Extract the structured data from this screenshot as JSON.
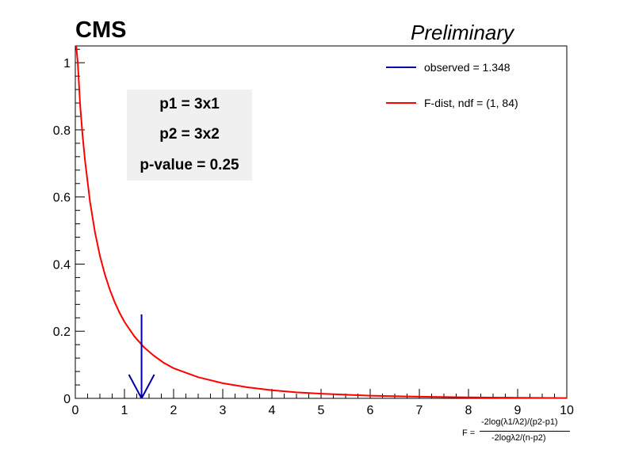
{
  "header": {
    "experiment": "CMS",
    "status": "Preliminary"
  },
  "info_box": {
    "line1": "p1 = 3x1",
    "line2": "p2 = 3x2",
    "line3": "p-value = 0.25"
  },
  "legend": {
    "observed": "observed = 1.348",
    "fdist": "F-dist, ndf = (1, 84)"
  },
  "xaxis_label": {
    "prefix": "F =",
    "numerator": "-2log(λ1/λ2)/(p2-p1)",
    "denominator": "-2logλ2/(n-p2)"
  },
  "colors": {
    "observed": "#0000aa",
    "fdist": "#ff0000",
    "box": "#f0f0f0"
  },
  "chart_data": {
    "type": "line",
    "xlim": [
      0,
      10
    ],
    "ylim": [
      0,
      1.05
    ],
    "xticks": [
      "0",
      "1",
      "2",
      "3",
      "4",
      "5",
      "6",
      "7",
      "8",
      "9",
      "10"
    ],
    "yticks": [
      "0",
      "0.2",
      "0.4",
      "0.6",
      "0.8",
      "1"
    ],
    "series": [
      {
        "name": "F-dist, ndf = (1, 84)",
        "x": [
          0.02,
          0.05,
          0.1,
          0.15,
          0.2,
          0.3,
          0.4,
          0.5,
          0.6,
          0.7,
          0.8,
          0.9,
          1.0,
          1.2,
          1.4,
          1.6,
          1.8,
          2.0,
          2.5,
          3.0,
          3.5,
          4.0,
          4.5,
          5.0,
          6.0,
          7.0,
          8.0,
          9.0,
          10.0
        ],
        "y": [
          1.05,
          1.0,
          0.87,
          0.78,
          0.705,
          0.585,
          0.495,
          0.425,
          0.37,
          0.325,
          0.287,
          0.255,
          0.228,
          0.185,
          0.152,
          0.127,
          0.106,
          0.09,
          0.063,
          0.045,
          0.033,
          0.024,
          0.018,
          0.014,
          0.008,
          0.005,
          0.003,
          0.002,
          0.001
        ]
      }
    ],
    "observed": {
      "name": "observed = 1.348",
      "x": 1.348,
      "arrow_top": 0.25
    }
  }
}
